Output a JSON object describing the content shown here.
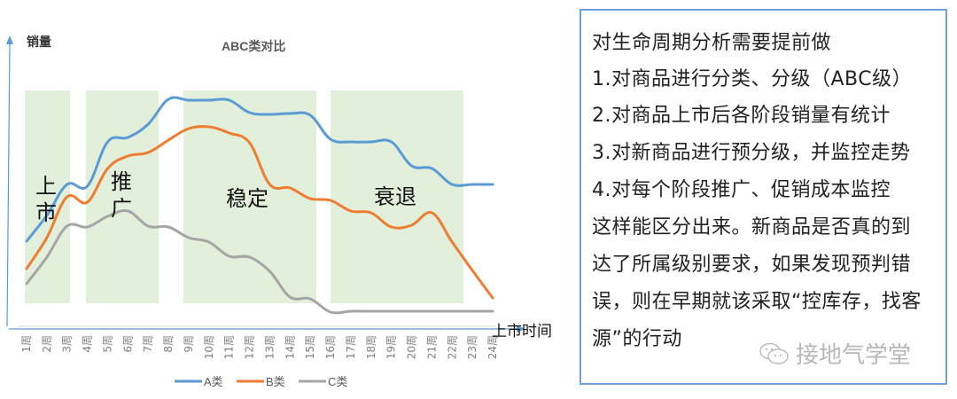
{
  "chart_data": {
    "type": "line",
    "title": "ABC类对比",
    "xlabel": "上市时间",
    "ylabel": "销量",
    "categories": [
      "1周",
      "2周",
      "3周",
      "4周",
      "5周",
      "6周",
      "7周",
      "8周",
      "9周",
      "10周",
      "11周",
      "12周",
      "13周",
      "14周",
      "15周",
      "16周",
      "17周",
      "18周",
      "19周",
      "20周",
      "21周",
      "22周",
      "23周",
      "24周"
    ],
    "series": [
      {
        "name": "A类",
        "color": "#5b9bd5",
        "values": [
          272,
          243,
          208,
          210,
          160,
          155,
          140,
          112,
          113,
          113,
          113,
          127,
          129,
          128,
          130,
          157,
          160,
          160,
          160,
          187,
          190,
          208,
          208,
          208
        ]
      },
      {
        "name": "B类",
        "color": "#ed7d31",
        "values": [
          303,
          268,
          222,
          228,
          190,
          176,
          172,
          158,
          145,
          143,
          150,
          161,
          208,
          212,
          224,
          226,
          238,
          240,
          256,
          254,
          240,
          273,
          305,
          336
        ]
      },
      {
        "name": "C类",
        "color": "#a5a5a5",
        "values": [
          320,
          290,
          255,
          256,
          244,
          238,
          255,
          256,
          268,
          273,
          289,
          290,
          306,
          335,
          337,
          352,
          351,
          351,
          351,
          351,
          351,
          351,
          351,
          351
        ]
      }
    ],
    "y_units": "pixel-position (higher value = lower sales); axis has no numeric ticks",
    "phases": [
      {
        "label": "上市",
        "from_week": 1,
        "to_week": 3
      },
      {
        "label": "推广",
        "from_week": 4,
        "to_week": 7
      },
      {
        "label": "稳定",
        "from_week": 9,
        "to_week": 15
      },
      {
        "label": "衰退",
        "from_week": 16,
        "to_week": 22
      }
    ],
    "legend_position": "bottom",
    "grid": false
  },
  "chart": {
    "title": "ABC类对比",
    "y_axis_label": "销量",
    "x_axis_label": "上市时间",
    "phase_labels": {
      "launch_1": "上",
      "launch_2": "市",
      "promo_1": "推",
      "promo_2": "广",
      "stable": "稳定",
      "decline": "衰退"
    },
    "legend": {
      "a": "A类",
      "b": "B类",
      "c": "C类"
    },
    "colors": {
      "a": "#5b9bd5",
      "b": "#ed7d31",
      "c": "#a5a5a5",
      "phase_bg": "#e2efda",
      "axis": "#5b9bd5"
    }
  },
  "notes": {
    "lines": [
      "对生命周期分析需要提前做",
      "1.对商品进行分类、分级（ABC级）",
      "2.对商品上市后各阶段销量有统计",
      "3.对新商品进行预分级，并监控走势",
      "4.对每个阶段推广、促销成本监控",
      "这样能区分出来。新商品是否真的到",
      "达了所属级别要求，如果发现预判错",
      "误，则在早期就该采取“控库存，找客",
      "源”的行动"
    ],
    "watermark": "接地气学堂"
  }
}
